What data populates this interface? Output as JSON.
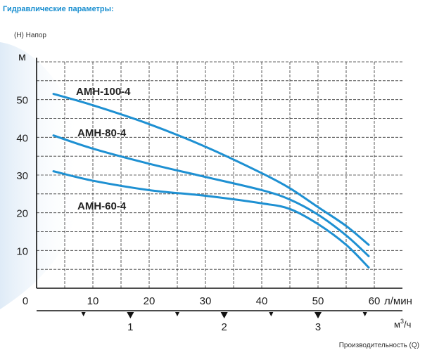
{
  "header": {
    "title": "Гидравлические параметры:"
  },
  "chart_data": {
    "type": "line",
    "title": "",
    "ylabel": "(H) Напор",
    "yunit": "м",
    "xlabel": "Производительность (Q)",
    "xunit": "л/мин",
    "x2unit": "м³/ч",
    "x2unit_base": "м",
    "x2unit_sup": "3",
    "x2unit_tail": "/ч",
    "xlim": [
      0,
      65
    ],
    "ylim": [
      0,
      60
    ],
    "xticks": [
      "0",
      "10",
      "20",
      "30",
      "40",
      "50",
      "60"
    ],
    "yticks": [
      "10",
      "20",
      "30",
      "40",
      "50"
    ],
    "x2ticks": [
      {
        "label": "1",
        "value": 1
      },
      {
        "label": "2",
        "value": 2
      },
      {
        "label": "3",
        "value": 3
      }
    ],
    "grid": true,
    "colors": {
      "series": "#1e90d2",
      "grid": "#333333",
      "axis": "#111111"
    },
    "series": [
      {
        "name": "AMH-100-4",
        "x": [
          3,
          10,
          20,
          30,
          40,
          45,
          50,
          55,
          59
        ],
        "y": [
          51.5,
          48.5,
          43.5,
          37.5,
          30.5,
          26.5,
          21.5,
          16.5,
          11.5
        ]
      },
      {
        "name": "AMH-80-4",
        "x": [
          3,
          10,
          20,
          30,
          40,
          45,
          50,
          55,
          59
        ],
        "y": [
          40.5,
          37,
          33,
          29.5,
          26,
          23.5,
          19.5,
          14,
          8.5
        ]
      },
      {
        "name": "AMH-60-4",
        "x": [
          3,
          10,
          20,
          30,
          40,
          45,
          50,
          55,
          59
        ],
        "y": [
          31,
          28.5,
          26,
          24.5,
          22.5,
          21,
          17,
          11.5,
          5.5
        ]
      }
    ]
  }
}
